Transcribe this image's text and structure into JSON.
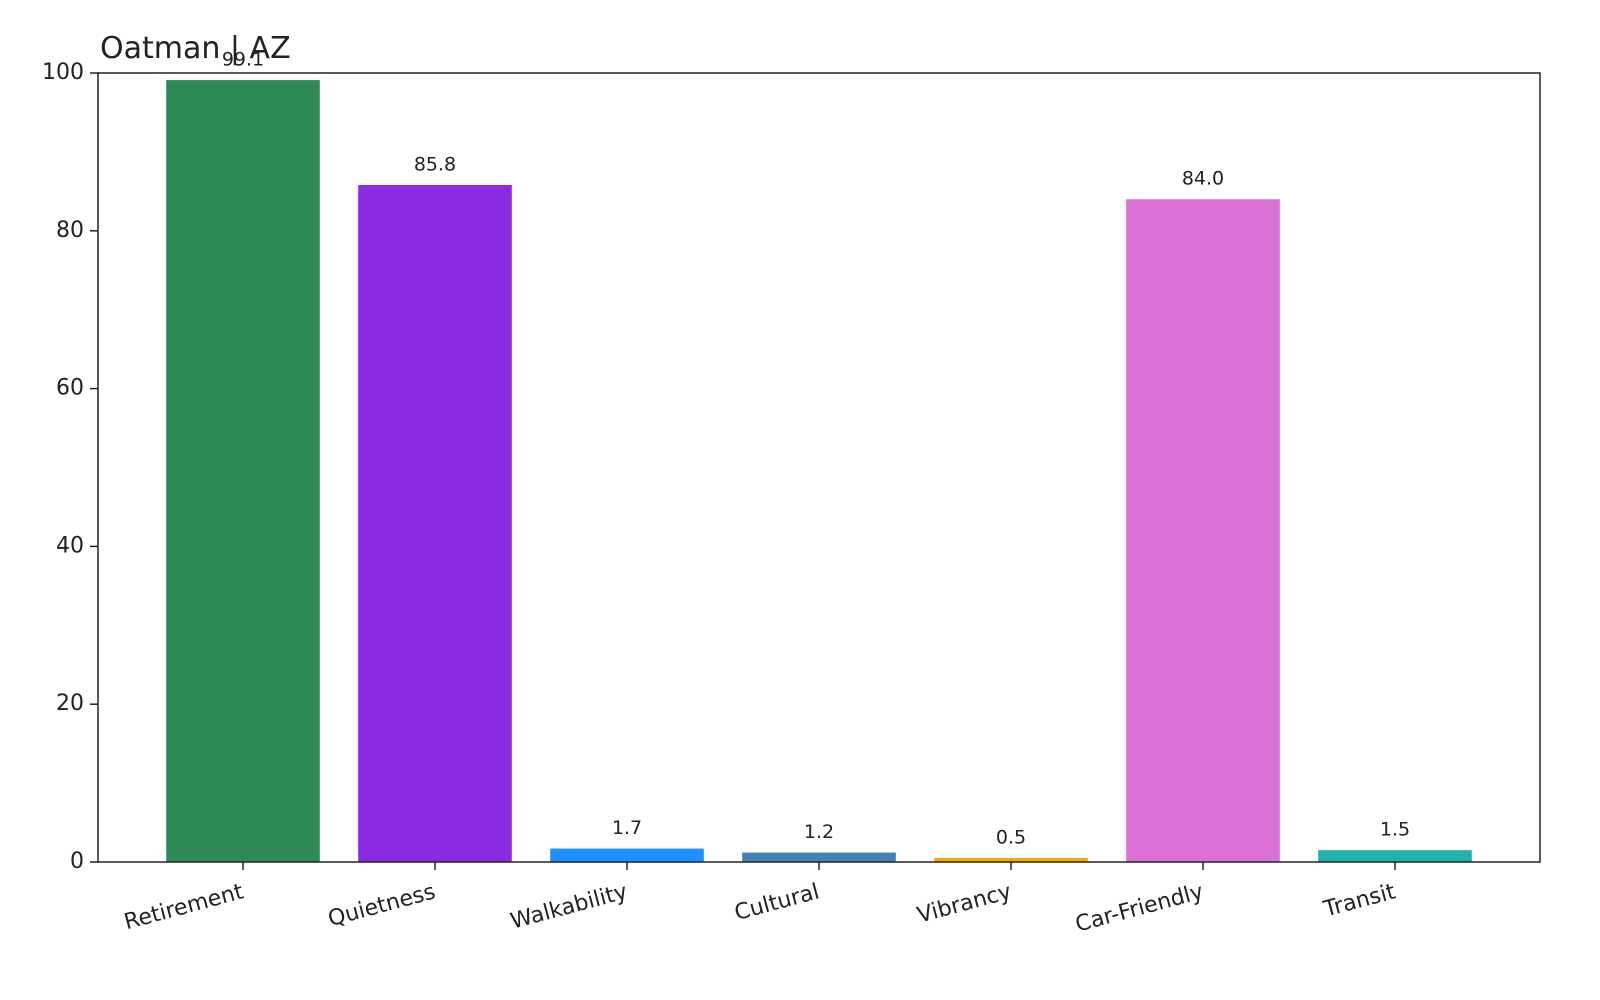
{
  "chart_data": {
    "type": "bar",
    "title": "Oatman | AZ",
    "categories": [
      "Retirement",
      "Quietness",
      "Walkability",
      "Cultural",
      "Vibrancy",
      "Car-Friendly",
      "Transit"
    ],
    "values": [
      99.1,
      85.8,
      1.7,
      1.2,
      0.5,
      84.0,
      1.5
    ],
    "value_labels": [
      "99.1",
      "85.8",
      "1.7",
      "1.2",
      "0.5",
      "84.0",
      "1.5"
    ],
    "colors": [
      "#2e8b57",
      "#8a2be2",
      "#1e90ff",
      "#4682b4",
      "#ffa500",
      "#da70d6",
      "#20b2aa"
    ],
    "ylim": [
      0,
      100
    ],
    "yticks": [
      0,
      20,
      40,
      60,
      80,
      100
    ],
    "grid": false
  }
}
